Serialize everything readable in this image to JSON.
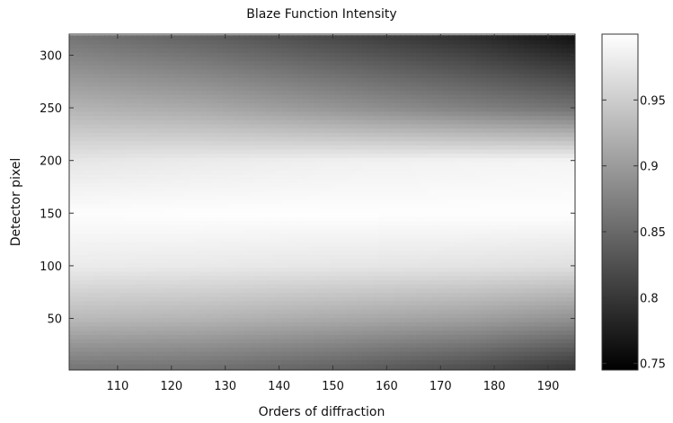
{
  "chart_data": {
    "type": "heatmap",
    "title": "Blaze Function Intensity",
    "xlabel": "Orders of diffraction",
    "ylabel": "Detector pixel",
    "xlim": [
      101,
      195
    ],
    "ylim": [
      1,
      320
    ],
    "x_ticks": [
      110,
      120,
      130,
      140,
      150,
      160,
      170,
      180,
      190
    ],
    "y_ticks": [
      50,
      100,
      150,
      200,
      250,
      300
    ],
    "x_tick_labels": [
      "110",
      "120",
      "130",
      "140",
      "150",
      "160",
      "170",
      "180",
      "190"
    ],
    "y_tick_labels": [
      "50",
      "100",
      "150",
      "200",
      "250",
      "300"
    ],
    "colormap": "gray",
    "colorbar": {
      "range": [
        0.745,
        1.0
      ],
      "ticks": [
        0.75,
        0.8,
        0.85,
        0.9,
        0.95
      ],
      "tick_labels": [
        "0.75",
        "0.8",
        "0.85",
        "0.9",
        "0.95"
      ]
    },
    "grid": false,
    "legend": "none",
    "intensity_samples": {
      "orders": [
        101,
        125,
        150,
        175,
        195
      ],
      "pixels": [
        1,
        50,
        100,
        150,
        200,
        250,
        320
      ],
      "values": [
        [
          0.86,
          0.855,
          0.84,
          0.82,
          0.795
        ],
        [
          0.93,
          0.925,
          0.915,
          0.905,
          0.89
        ],
        [
          0.98,
          0.978,
          0.975,
          0.972,
          0.968
        ],
        [
          0.998,
          0.999,
          0.999,
          0.999,
          0.999
        ],
        [
          0.975,
          0.98,
          0.985,
          0.988,
          0.99
        ],
        [
          0.925,
          0.915,
          0.895,
          0.875,
          0.86
        ],
        [
          0.86,
          0.84,
          0.815,
          0.79,
          0.76
        ]
      ]
    }
  }
}
